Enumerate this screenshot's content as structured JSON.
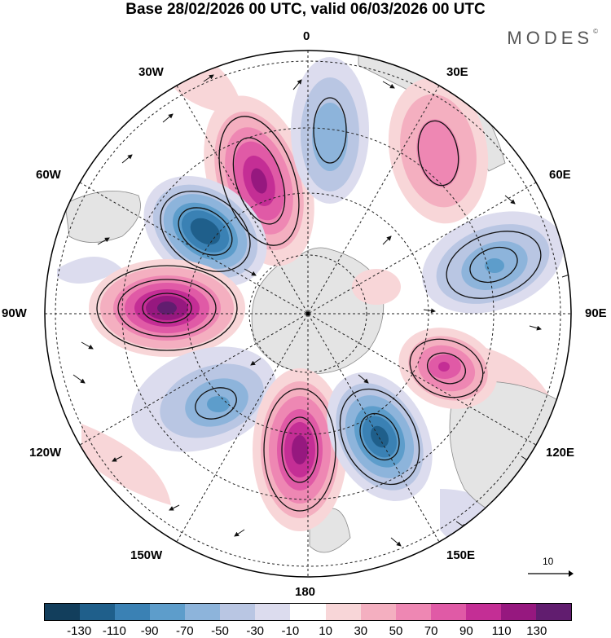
{
  "title": "Base 28/02/2026 00 UTC, valid 06/03/2026 00 UTC",
  "brand": "MODES",
  "brand_mark": "©",
  "labels": {
    "top": "0",
    "bottom": "180",
    "left": "90W",
    "right": "90E",
    "w30": "30W",
    "e30": "30E",
    "w60": "60W",
    "e60": "60E",
    "w120": "120W",
    "e120": "120E",
    "w150": "150W",
    "e150": "150E"
  },
  "reference_vector": {
    "label": "10"
  },
  "colorbar": {
    "colors": [
      "#123e5c",
      "#1f5f8b",
      "#3a81b4",
      "#5d9dcb",
      "#8db4db",
      "#b9c6e3",
      "#dcdcee",
      "#ffffff",
      "#f8d6d8",
      "#f4afc0",
      "#ee87b3",
      "#e05aa6",
      "#c42e95",
      "#96187f",
      "#611d6f"
    ],
    "ticks": [
      "-130",
      "-110",
      "-90",
      "-70",
      "-50",
      "-30",
      "-10",
      "10",
      "30",
      "50",
      "70",
      "90",
      "110",
      "130"
    ]
  },
  "chart_data": {
    "type": "polar-stereographic-map",
    "projection": "south polar stereographic",
    "field": "anomaly (shaded) with wind vectors",
    "center": "South Pole",
    "anomaly_centers": [
      {
        "sign": "positive",
        "approx_max": 110,
        "near": "30W-45W"
      },
      {
        "sign": "negative",
        "approx_min": -110,
        "near": "60W"
      },
      {
        "sign": "positive",
        "approx_max": 130,
        "near": "90W"
      },
      {
        "sign": "negative",
        "approx_min": -50,
        "near": "120W"
      },
      {
        "sign": "positive",
        "approx_max": 110,
        "near": "180"
      },
      {
        "sign": "negative",
        "approx_min": -110,
        "near": "150E"
      },
      {
        "sign": "positive",
        "approx_max": 90,
        "near": "105E"
      },
      {
        "sign": "negative",
        "approx_min": -70,
        "near": "75E"
      },
      {
        "sign": "positive",
        "approx_max": 50,
        "near": "30E"
      },
      {
        "sign": "negative",
        "approx_min": -50,
        "near": "0-15E"
      }
    ]
  }
}
